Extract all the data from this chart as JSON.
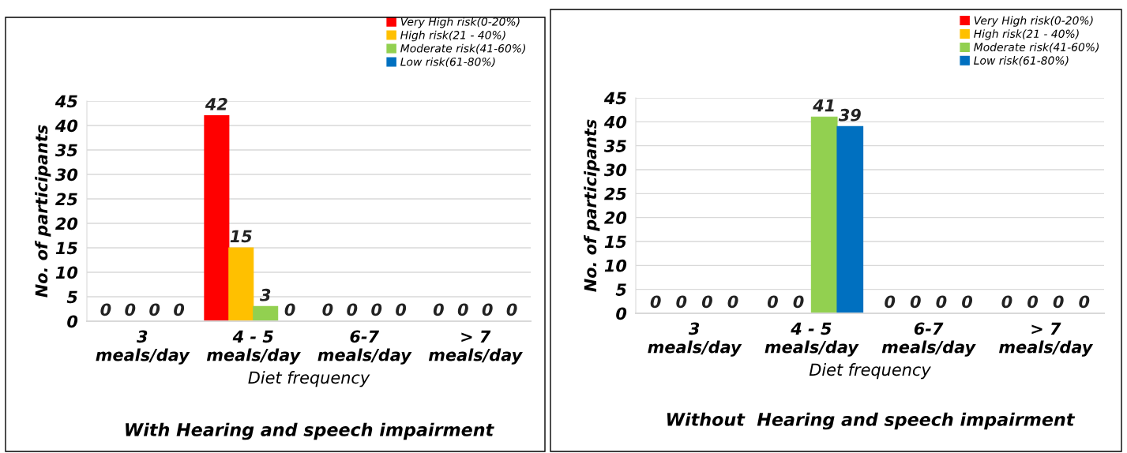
{
  "chart_data": [
    {
      "type": "bar",
      "title": "With Hearing and speech impairment",
      "xlabel": "Diet frequency",
      "ylabel": "No. of participants",
      "categories": [
        "3\nmeals/day",
        "4 - 5\nmeals/day",
        "6-7\nmeals/day",
        "> 7\nmeals/day"
      ],
      "series": [
        {
          "name": "Very High risk(0-20%)",
          "color": "#ff0000",
          "values": [
            0,
            42,
            0,
            0
          ]
        },
        {
          "name": "High risk(21 - 40%)",
          "color": "#ffc000",
          "values": [
            0,
            15,
            0,
            0
          ]
        },
        {
          "name": "Moderate risk(41-60%)",
          "color": "#92d050",
          "values": [
            0,
            3,
            0,
            0
          ]
        },
        {
          "name": "Low risk(61-80%)",
          "color": "#0070c0",
          "values": [
            0,
            0,
            0,
            0
          ]
        }
      ],
      "ylim": [
        0,
        45
      ],
      "yticks": [
        0,
        5,
        10,
        15,
        20,
        25,
        30,
        35,
        40,
        45
      ],
      "grid": "y",
      "legend": "top right",
      "data_labels": true
    },
    {
      "type": "bar",
      "title": "Without  Hearing and speech impairment",
      "xlabel": "Diet frequency",
      "ylabel": "No. of participants",
      "categories": [
        "3\nmeals/day",
        "4 - 5\nmeals/day",
        "6-7\nmeals/day",
        "> 7\nmeals/day"
      ],
      "series": [
        {
          "name": "Very High risk(0-20%)",
          "color": "#ff0000",
          "values": [
            0,
            0,
            0,
            0
          ]
        },
        {
          "name": "High risk(21 - 40%)",
          "color": "#ffc000",
          "values": [
            0,
            0,
            0,
            0
          ]
        },
        {
          "name": "Moderate risk(41-60%)",
          "color": "#92d050",
          "values": [
            0,
            41,
            0,
            0
          ]
        },
        {
          "name": "Low risk(61-80%)",
          "color": "#0070c0",
          "values": [
            0,
            39,
            0,
            0
          ]
        }
      ],
      "ylim": [
        0,
        45
      ],
      "yticks": [
        0,
        5,
        10,
        15,
        20,
        25,
        30,
        35,
        40,
        45
      ],
      "grid": "y",
      "legend": "top right",
      "data_labels": true
    }
  ]
}
